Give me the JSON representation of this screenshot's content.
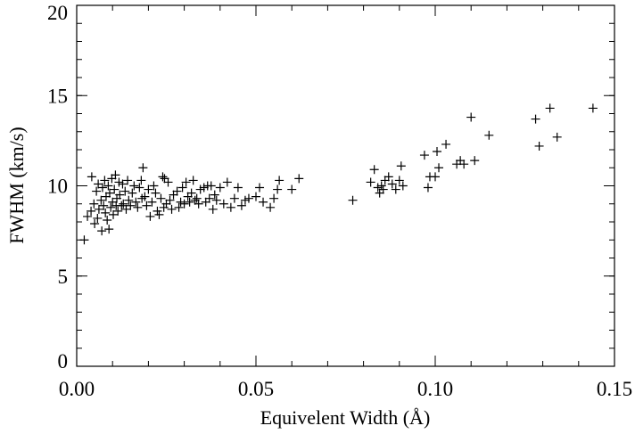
{
  "chart_data": {
    "type": "scatter",
    "title": "",
    "xlabel": "Equivelent Width (Å)",
    "ylabel": "FWHM (km/s)",
    "xlim": [
      0.0,
      0.15
    ],
    "ylim": [
      0,
      20
    ],
    "grid": false,
    "marker": "+",
    "x_ticks": [
      {
        "value": 0.0,
        "label": "0.00"
      },
      {
        "value": 0.05,
        "label": "0.05"
      },
      {
        "value": 0.1,
        "label": "0.10"
      },
      {
        "value": 0.15,
        "label": "0.15"
      }
    ],
    "y_ticks": [
      {
        "value": 0,
        "label": "0"
      },
      {
        "value": 5,
        "label": "5"
      },
      {
        "value": 10,
        "label": "10"
      },
      {
        "value": 15,
        "label": "15"
      },
      {
        "value": 20,
        "label": "20"
      }
    ],
    "x_minor_step": 0.01,
    "y_minor_step": 1,
    "series": [
      {
        "points": [
          [
            0.0021,
            7.0
          ],
          [
            0.003,
            8.3
          ],
          [
            0.004,
            8.6
          ],
          [
            0.0042,
            10.5
          ],
          [
            0.0048,
            9.0
          ],
          [
            0.005,
            7.9
          ],
          [
            0.0055,
            9.7
          ],
          [
            0.0058,
            8.2
          ],
          [
            0.006,
            10.1
          ],
          [
            0.0062,
            8.7
          ],
          [
            0.0068,
            9.2
          ],
          [
            0.007,
            7.5
          ],
          [
            0.0072,
            9.9
          ],
          [
            0.0075,
            8.9
          ],
          [
            0.0078,
            10.3
          ],
          [
            0.008,
            8.5
          ],
          [
            0.0082,
            9.4
          ],
          [
            0.0085,
            8.1
          ],
          [
            0.0088,
            10.0
          ],
          [
            0.009,
            7.6
          ],
          [
            0.0092,
            9.6
          ],
          [
            0.0095,
            8.8
          ],
          [
            0.0098,
            10.4
          ],
          [
            0.01,
            9.1
          ],
          [
            0.0102,
            8.4
          ],
          [
            0.0105,
            9.8
          ],
          [
            0.0108,
            10.6
          ],
          [
            0.011,
            8.9
          ],
          [
            0.0112,
            9.3
          ],
          [
            0.0115,
            8.6
          ],
          [
            0.0118,
            10.2
          ],
          [
            0.012,
            9.5
          ],
          [
            0.0125,
            8.9
          ],
          [
            0.0128,
            10.1
          ],
          [
            0.013,
            9.0
          ],
          [
            0.0135,
            9.7
          ],
          [
            0.0138,
            8.7
          ],
          [
            0.0142,
            10.3
          ],
          [
            0.0145,
            9.2
          ],
          [
            0.015,
            8.9
          ],
          [
            0.0155,
            9.6
          ],
          [
            0.016,
            10.0
          ],
          [
            0.0165,
            9.1
          ],
          [
            0.017,
            8.8
          ],
          [
            0.0175,
            9.9
          ],
          [
            0.018,
            10.3
          ],
          [
            0.0182,
            9.3
          ],
          [
            0.0185,
            11.0
          ],
          [
            0.019,
            9.4
          ],
          [
            0.0195,
            8.9
          ],
          [
            0.02,
            9.8
          ],
          [
            0.0205,
            8.3
          ],
          [
            0.021,
            9.1
          ],
          [
            0.0215,
            10.0
          ],
          [
            0.022,
            9.6
          ],
          [
            0.0225,
            8.6
          ],
          [
            0.023,
            8.4
          ],
          [
            0.0235,
            9.3
          ],
          [
            0.024,
            10.5
          ],
          [
            0.0243,
            8.8
          ],
          [
            0.0245,
            10.4
          ],
          [
            0.025,
            9.0
          ],
          [
            0.0255,
            10.2
          ],
          [
            0.026,
            9.2
          ],
          [
            0.0265,
            8.7
          ],
          [
            0.027,
            9.5
          ],
          [
            0.028,
            9.7
          ],
          [
            0.0285,
            8.8
          ],
          [
            0.029,
            9.1
          ],
          [
            0.0295,
            9.9
          ],
          [
            0.03,
            9.0
          ],
          [
            0.0305,
            10.2
          ],
          [
            0.031,
            9.4
          ],
          [
            0.0315,
            9.1
          ],
          [
            0.032,
            9.6
          ],
          [
            0.0325,
            10.3
          ],
          [
            0.033,
            9.2
          ],
          [
            0.0335,
            9.3
          ],
          [
            0.034,
            9.0
          ],
          [
            0.0345,
            9.8
          ],
          [
            0.0355,
            9.9
          ],
          [
            0.036,
            9.1
          ],
          [
            0.0365,
            10.0
          ],
          [
            0.037,
            9.3
          ],
          [
            0.0375,
            10.0
          ],
          [
            0.038,
            8.7
          ],
          [
            0.0385,
            9.5
          ],
          [
            0.039,
            9.2
          ],
          [
            0.04,
            9.9
          ],
          [
            0.041,
            9.0
          ],
          [
            0.042,
            10.2
          ],
          [
            0.043,
            8.8
          ],
          [
            0.044,
            9.3
          ],
          [
            0.045,
            9.9
          ],
          [
            0.046,
            8.9
          ],
          [
            0.047,
            9.2
          ],
          [
            0.048,
            9.3
          ],
          [
            0.05,
            9.4
          ],
          [
            0.051,
            9.9
          ],
          [
            0.052,
            9.1
          ],
          [
            0.054,
            8.8
          ],
          [
            0.055,
            9.3
          ],
          [
            0.056,
            9.8
          ],
          [
            0.0565,
            10.3
          ],
          [
            0.06,
            9.8
          ],
          [
            0.062,
            10.4
          ],
          [
            0.077,
            9.2
          ],
          [
            0.082,
            10.2
          ],
          [
            0.083,
            10.9
          ],
          [
            0.084,
            9.9
          ],
          [
            0.0845,
            9.6
          ],
          [
            0.085,
            10.0
          ],
          [
            0.0855,
            9.8
          ],
          [
            0.086,
            10.3
          ],
          [
            0.087,
            10.5
          ],
          [
            0.088,
            10.1
          ],
          [
            0.089,
            9.8
          ],
          [
            0.09,
            10.3
          ],
          [
            0.0905,
            11.1
          ],
          [
            0.091,
            10.0
          ],
          [
            0.097,
            11.7
          ],
          [
            0.098,
            9.9
          ],
          [
            0.0985,
            10.5
          ],
          [
            0.1,
            10.5
          ],
          [
            0.1005,
            11.9
          ],
          [
            0.101,
            11.0
          ],
          [
            0.103,
            12.3
          ],
          [
            0.106,
            11.2
          ],
          [
            0.107,
            11.4
          ],
          [
            0.108,
            11.2
          ],
          [
            0.11,
            13.8
          ],
          [
            0.111,
            11.4
          ],
          [
            0.115,
            12.8
          ],
          [
            0.128,
            13.7
          ],
          [
            0.129,
            12.2
          ],
          [
            0.132,
            14.3
          ],
          [
            0.134,
            12.7
          ],
          [
            0.144,
            14.3
          ]
        ]
      }
    ]
  }
}
